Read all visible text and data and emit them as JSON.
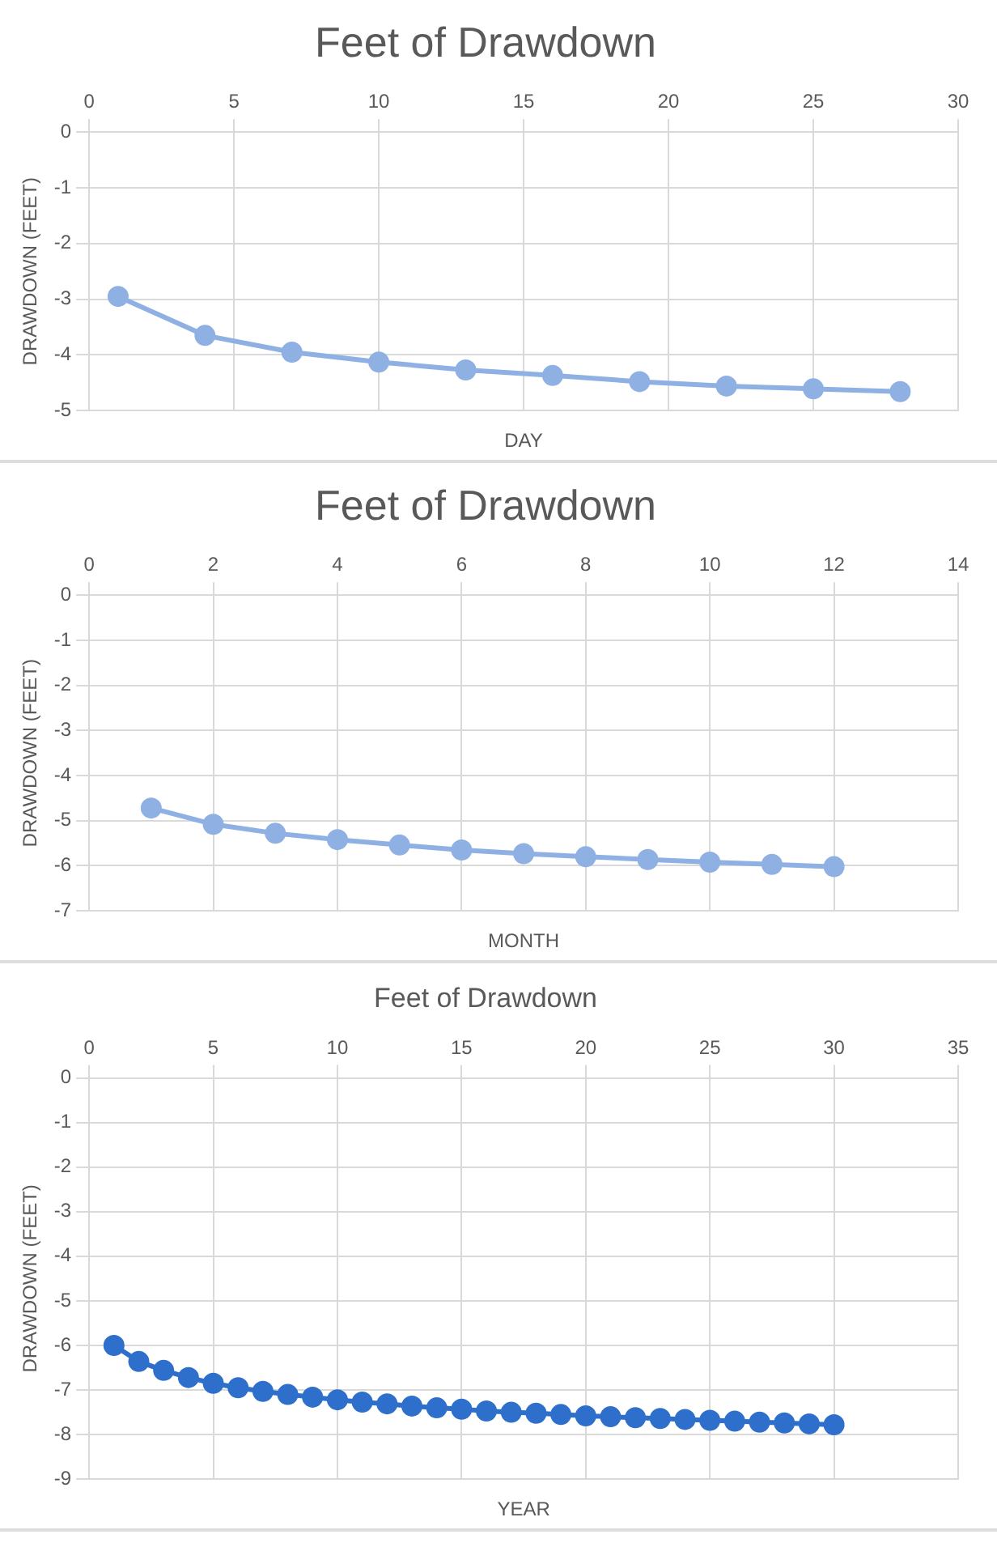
{
  "chart_data": [
    {
      "type": "line",
      "title": "Feet of Drawdown",
      "xlabel": "DAY",
      "ylabel": "DRAWDOWN (FEET)",
      "x": [
        1,
        4,
        7,
        10,
        13,
        16,
        19,
        22,
        25,
        28
      ],
      "series": [
        {
          "color": "#8fb0e3",
          "values": [
            -2.95,
            -3.65,
            -3.95,
            -4.13,
            -4.27,
            -4.37,
            -4.48,
            -4.56,
            -4.61,
            -4.66
          ]
        }
      ],
      "xlim": [
        0,
        30
      ],
      "xticks": [
        0,
        5,
        10,
        15,
        20,
        25,
        30
      ],
      "ylim": [
        -5,
        0
      ],
      "yticks": [
        -5,
        -4,
        -3,
        -2,
        -1,
        0
      ],
      "grid": true,
      "marker": "circle",
      "legend": false
    },
    {
      "type": "line",
      "title": "Feet of Drawdown",
      "xlabel": "MONTH",
      "ylabel": "DRAWDOWN (FEET)",
      "x": [
        1,
        2,
        3,
        4,
        5,
        6,
        7,
        8,
        9,
        10,
        11,
        12
      ],
      "series": [
        {
          "color": "#8fb0e3",
          "values": [
            -4.72,
            -5.08,
            -5.28,
            -5.42,
            -5.54,
            -5.65,
            -5.73,
            -5.8,
            -5.86,
            -5.92,
            -5.97,
            -6.02
          ]
        }
      ],
      "xlim": [
        0,
        14
      ],
      "xticks": [
        0,
        2,
        4,
        6,
        8,
        10,
        12,
        14
      ],
      "ylim": [
        -7,
        0
      ],
      "yticks": [
        -7,
        -6,
        -5,
        -4,
        -3,
        -2,
        -1,
        0
      ],
      "grid": true,
      "marker": "circle",
      "legend": false
    },
    {
      "type": "line",
      "title": "Feet of Drawdown",
      "xlabel": "YEAR",
      "ylabel": "DRAWDOWN (FEET)",
      "x": [
        1,
        2,
        3,
        4,
        5,
        6,
        7,
        8,
        9,
        10,
        11,
        12,
        13,
        14,
        15,
        16,
        17,
        18,
        19,
        20,
        21,
        22,
        23,
        24,
        25,
        26,
        27,
        28,
        29,
        30
      ],
      "series": [
        {
          "color": "#2f6fcc",
          "values": [
            -6.0,
            -6.36,
            -6.56,
            -6.72,
            -6.85,
            -6.95,
            -7.03,
            -7.1,
            -7.16,
            -7.22,
            -7.27,
            -7.31,
            -7.36,
            -7.4,
            -7.43,
            -7.47,
            -7.5,
            -7.52,
            -7.55,
            -7.58,
            -7.6,
            -7.62,
            -7.64,
            -7.66,
            -7.68,
            -7.7,
            -7.72,
            -7.74,
            -7.76,
            -7.78
          ]
        }
      ],
      "xlim": [
        0,
        35
      ],
      "xticks": [
        0,
        5,
        10,
        15,
        20,
        25,
        30,
        35
      ],
      "ylim": [
        -9,
        0
      ],
      "yticks": [
        -9,
        -8,
        -7,
        -6,
        -5,
        -4,
        -3,
        -2,
        -1,
        0
      ],
      "grid": true,
      "marker": "circle",
      "legend": false
    }
  ]
}
